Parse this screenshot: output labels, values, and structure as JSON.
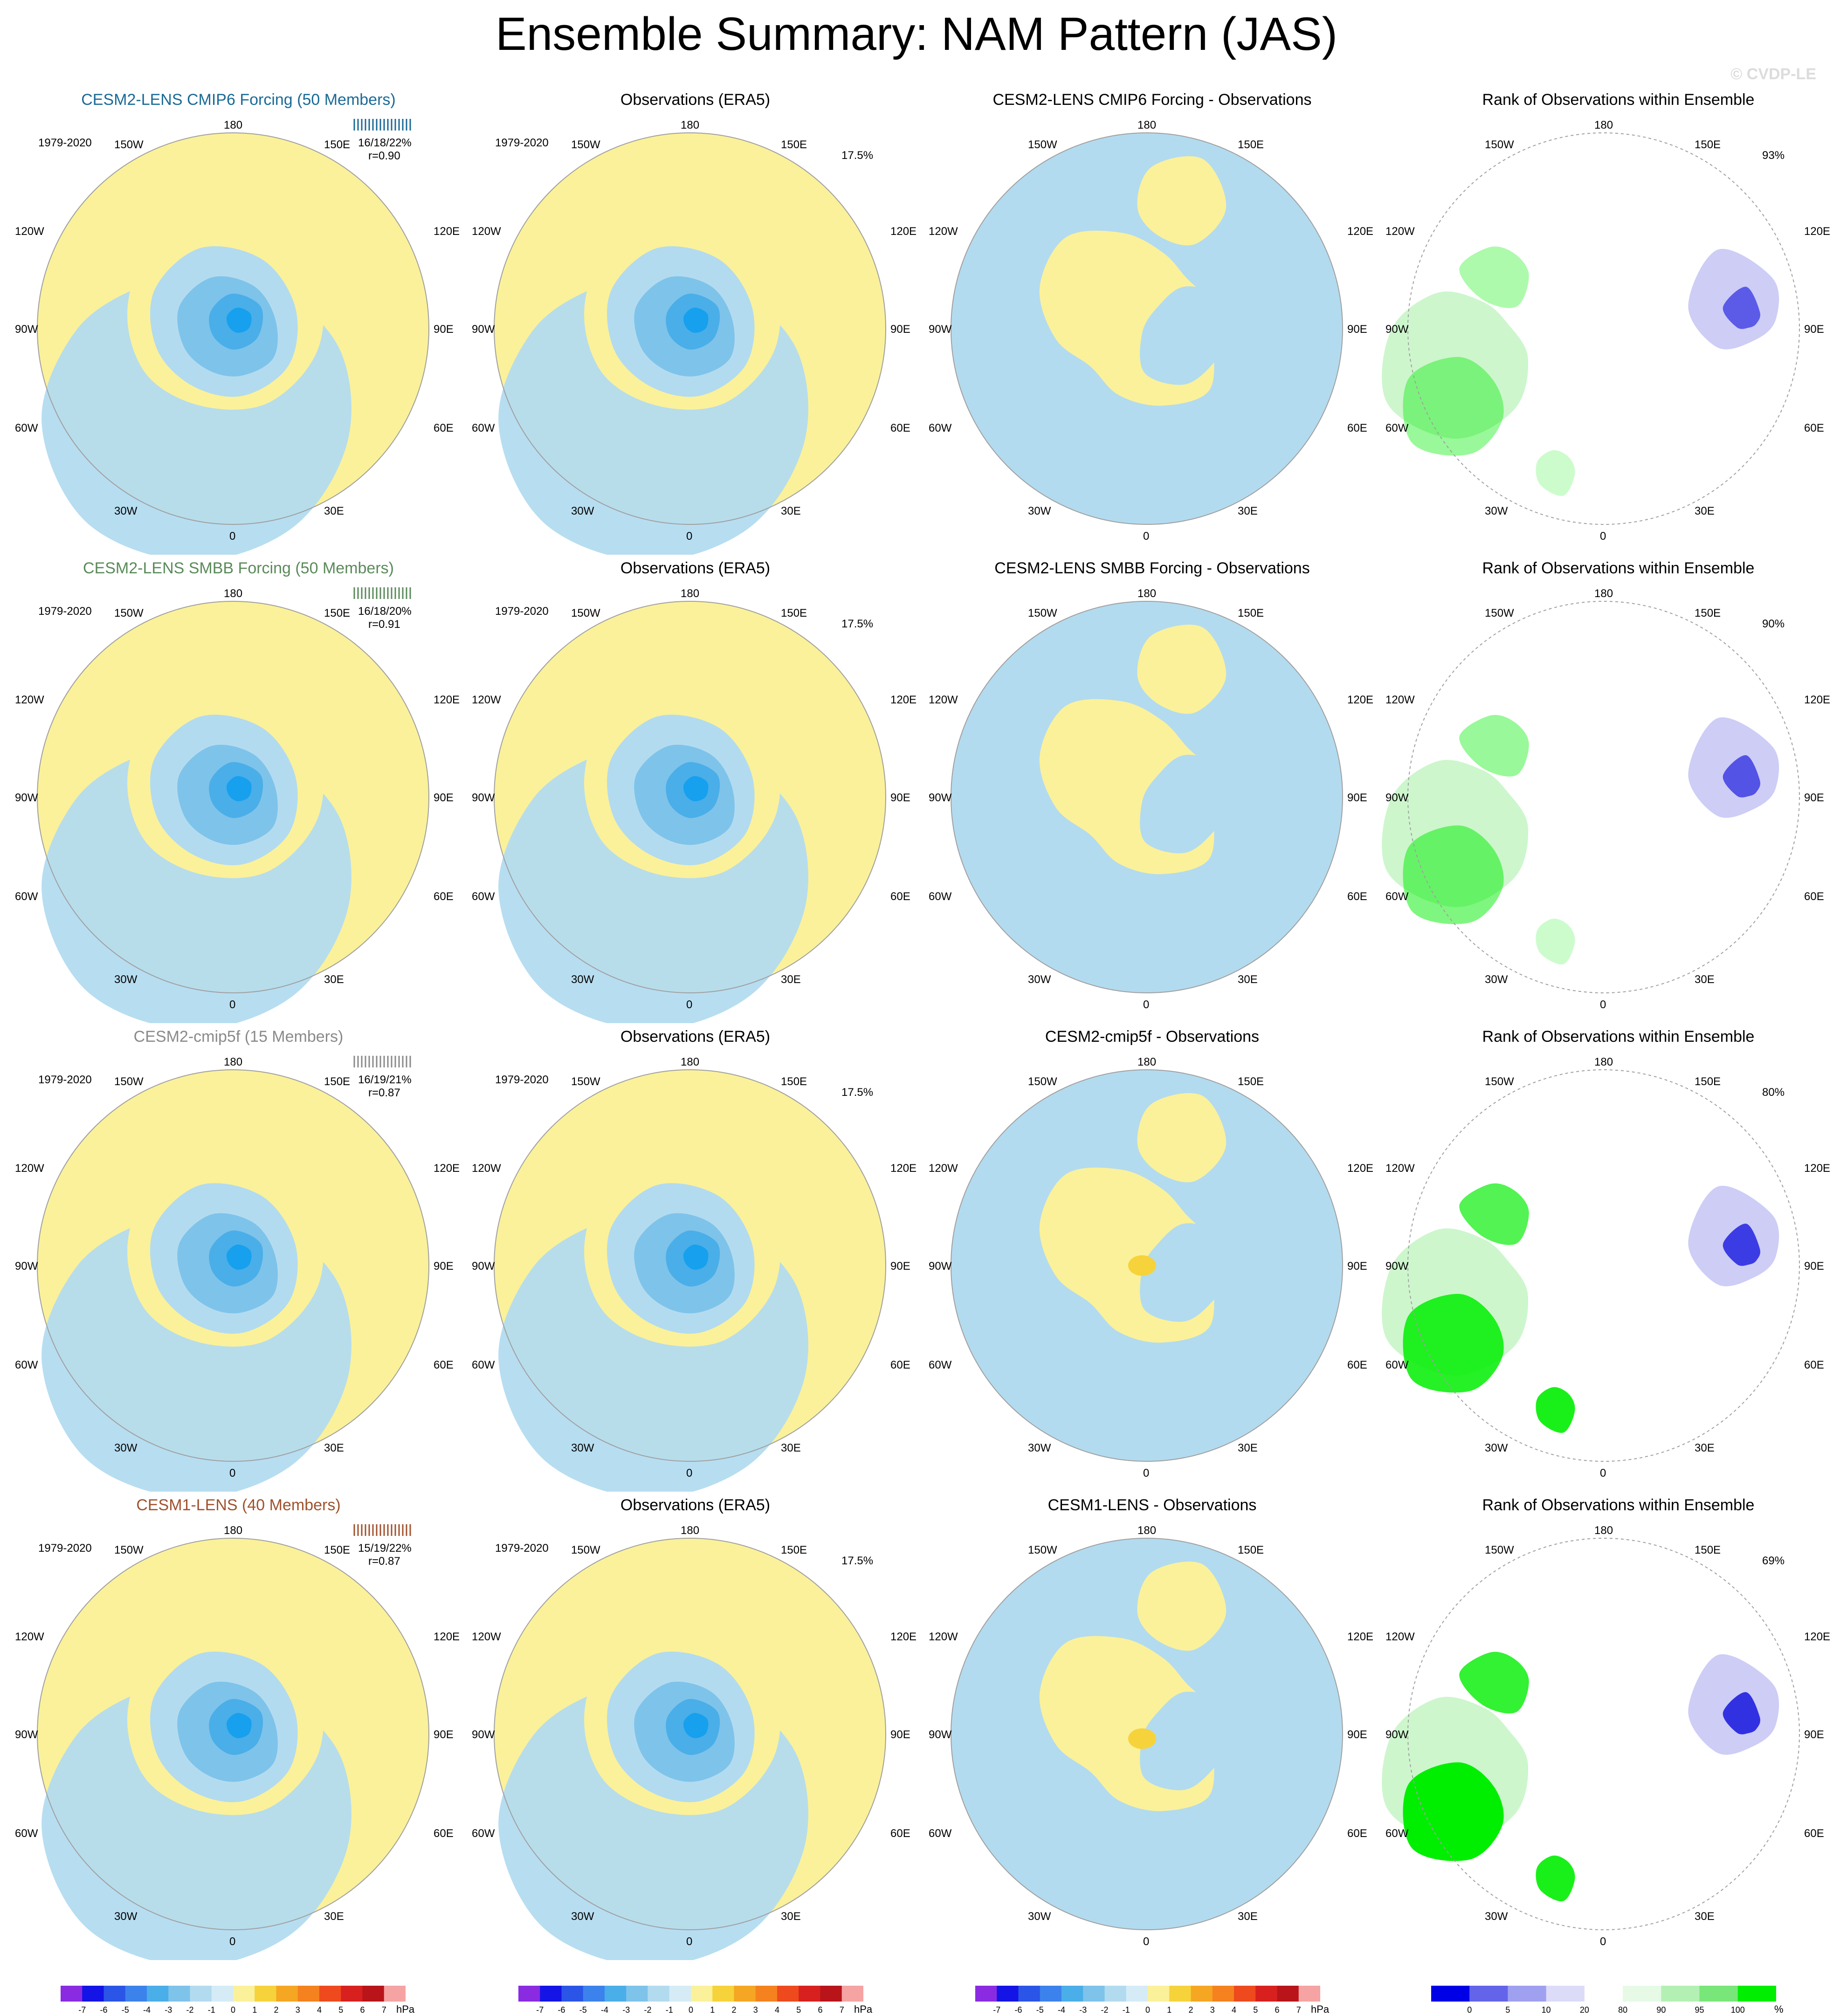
{
  "title": "Ensemble Summary: NAM Pattern (JAS)",
  "watermark": "© CVDP-LE",
  "rows": [
    {
      "model_title": "CESM2-LENS CMIP6 Forcing (50 Members)",
      "model_title_color": "#1a6a96",
      "pct_summary": "16/18/22%",
      "r_value": "r=0.90",
      "diff_title": "CESM2-LENS CMIP6 Forcing - Observations",
      "rank_pct": "93%"
    },
    {
      "model_title": "CESM2-LENS SMBB Forcing (50 Members)",
      "model_title_color": "#5a8a5a",
      "pct_summary": "16/18/20%",
      "r_value": "r=0.91",
      "diff_title": "CESM2-LENS SMBB Forcing - Observations",
      "rank_pct": "90%"
    },
    {
      "model_title": "CESM2-cmip5f (15 Members)",
      "model_title_color": "#8a8a8a",
      "pct_summary": "16/19/21%",
      "r_value": "r=0.87",
      "diff_title": "CESM2-cmip5f - Observations",
      "rank_pct": "80%"
    },
    {
      "model_title": "CESM1-LENS (40 Members)",
      "model_title_color": "#a0522d",
      "pct_summary": "15/19/22%",
      "r_value": "r=0.87",
      "diff_title": "CESM1-LENS - Observations",
      "rank_pct": "69%"
    }
  ],
  "obs_title": "Observations (ERA5)",
  "rank_title": "Rank of Observations within Ensemble",
  "period": "1979-2020",
  "obs_pct": "17.5%",
  "lon_labels": {
    "top": "180",
    "bottom": "0",
    "p150w": "150W",
    "p150e": "150E",
    "p120w": "120W",
    "p120e": "120E",
    "p90w": "90W",
    "p90e": "90E",
    "p60w": "60W",
    "p60e": "60E",
    "p30w": "30W",
    "p30e": "30E"
  },
  "colors": {
    "positive_fill": "#fbf19a",
    "negative_fill": "#b3dbef",
    "neg2": "#7ec3ea",
    "neg3": "#4aaee8",
    "neg4": "#16a0ee",
    "rank_green": "#c8f5c8",
    "rank_green_strong": "#00ee00",
    "rank_blue": "#c8c8f5",
    "rank_blue_strong": "#2020e0"
  },
  "chart_data": [
    {
      "type": "heatmap",
      "description_key": "pattern_colorbar",
      "colorbar_labels": [
        "-7",
        "-6",
        "-5",
        "-4",
        "-3",
        "-2",
        "-1",
        "0",
        "1",
        "2",
        "3",
        "4",
        "5",
        "6",
        "7"
      ],
      "colorbar_colors": [
        "#8a2be2",
        "#1414e6",
        "#2a55e6",
        "#3c82ec",
        "#4aaee8",
        "#7ec3ea",
        "#b3dbef",
        "#d5ecf7",
        "#fbf19a",
        "#f6d33a",
        "#f5a623",
        "#f5821e",
        "#ee4a1e",
        "#d8201e",
        "#b8141a",
        "#f5a3a3"
      ],
      "unit": "hPa"
    },
    {
      "type": "heatmap",
      "description_key": "rank_colorbar",
      "colorbar_labels": [
        "0",
        "5",
        "10",
        "20",
        "80",
        "90",
        "95",
        "100"
      ],
      "colorbar_colors": [
        "#0000e6",
        "#6464eb",
        "#a0a0f0",
        "#dcdcf8",
        "#ffffff",
        "#e6fae6",
        "#b4f0b4",
        "#78e678",
        "#00ee00"
      ],
      "unit": "%"
    }
  ]
}
